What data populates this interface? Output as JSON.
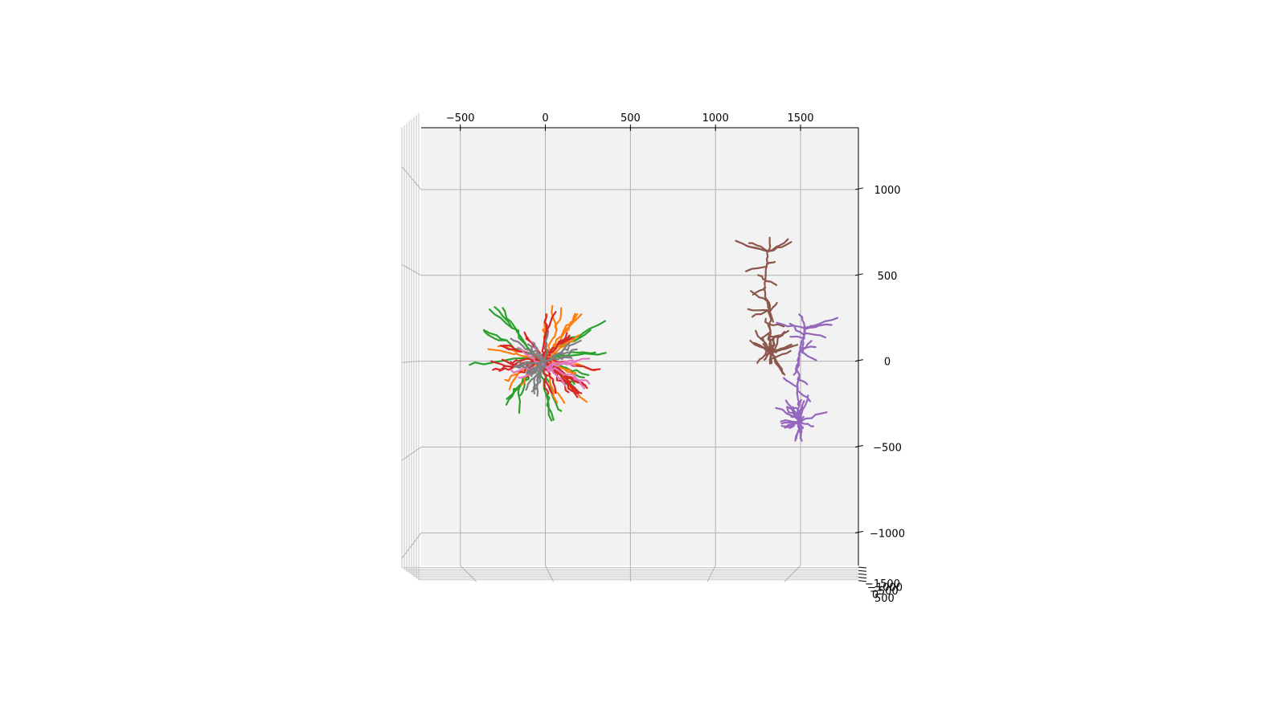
{
  "chart_data": {
    "type": "line",
    "projection": "3d",
    "title": "",
    "xlabel": "",
    "ylabel": "",
    "zlabel": "",
    "xlim": [
      -730,
      1840
    ],
    "ylim": [
      -1190,
      1360
    ],
    "x_ticks": [
      -500,
      0,
      500,
      1000,
      1500
    ],
    "x_tick_labels": [
      "−500",
      "0",
      "500",
      "1000",
      "1500"
    ],
    "y_ticks": [
      -1000,
      -500,
      0,
      500,
      1000
    ],
    "y_tick_labels": [
      "−1000",
      "−500",
      "0",
      "500",
      "1000"
    ],
    "z_tick_labels": [
      "−1500",
      "−1000",
      "−500",
      "0",
      "500"
    ],
    "grid": true,
    "legend": "none",
    "series": [
      {
        "color": "#2ca02c",
        "center": [
          -50,
          20
        ],
        "branches": 16,
        "spread": 500
      },
      {
        "color": "#ff7f0e",
        "center": [
          0,
          10
        ],
        "branches": 14,
        "spread": 380
      },
      {
        "color": "#d62728",
        "center": [
          -10,
          15
        ],
        "branches": 18,
        "spread": 330
      },
      {
        "color": "#e377c2",
        "center": [
          0,
          -30
        ],
        "branches": 8,
        "spread": 340
      },
      {
        "color": "#7f7f7f",
        "center": [
          0,
          0
        ],
        "branches": 14,
        "spread": 260
      },
      {
        "color": "#8c564b",
        "trunk": [
          [
            1330,
            -10
          ],
          [
            1320,
            280
          ],
          [
            1290,
            440
          ],
          [
            1310,
            640
          ]
        ],
        "center": [
          1330,
          50
        ]
      },
      {
        "color": "#9467bd",
        "trunk": [
          [
            1500,
            -450
          ],
          [
            1480,
            -180
          ],
          [
            1490,
            40
          ],
          [
            1530,
            190
          ]
        ],
        "center": [
          1500,
          -350
        ]
      }
    ]
  }
}
